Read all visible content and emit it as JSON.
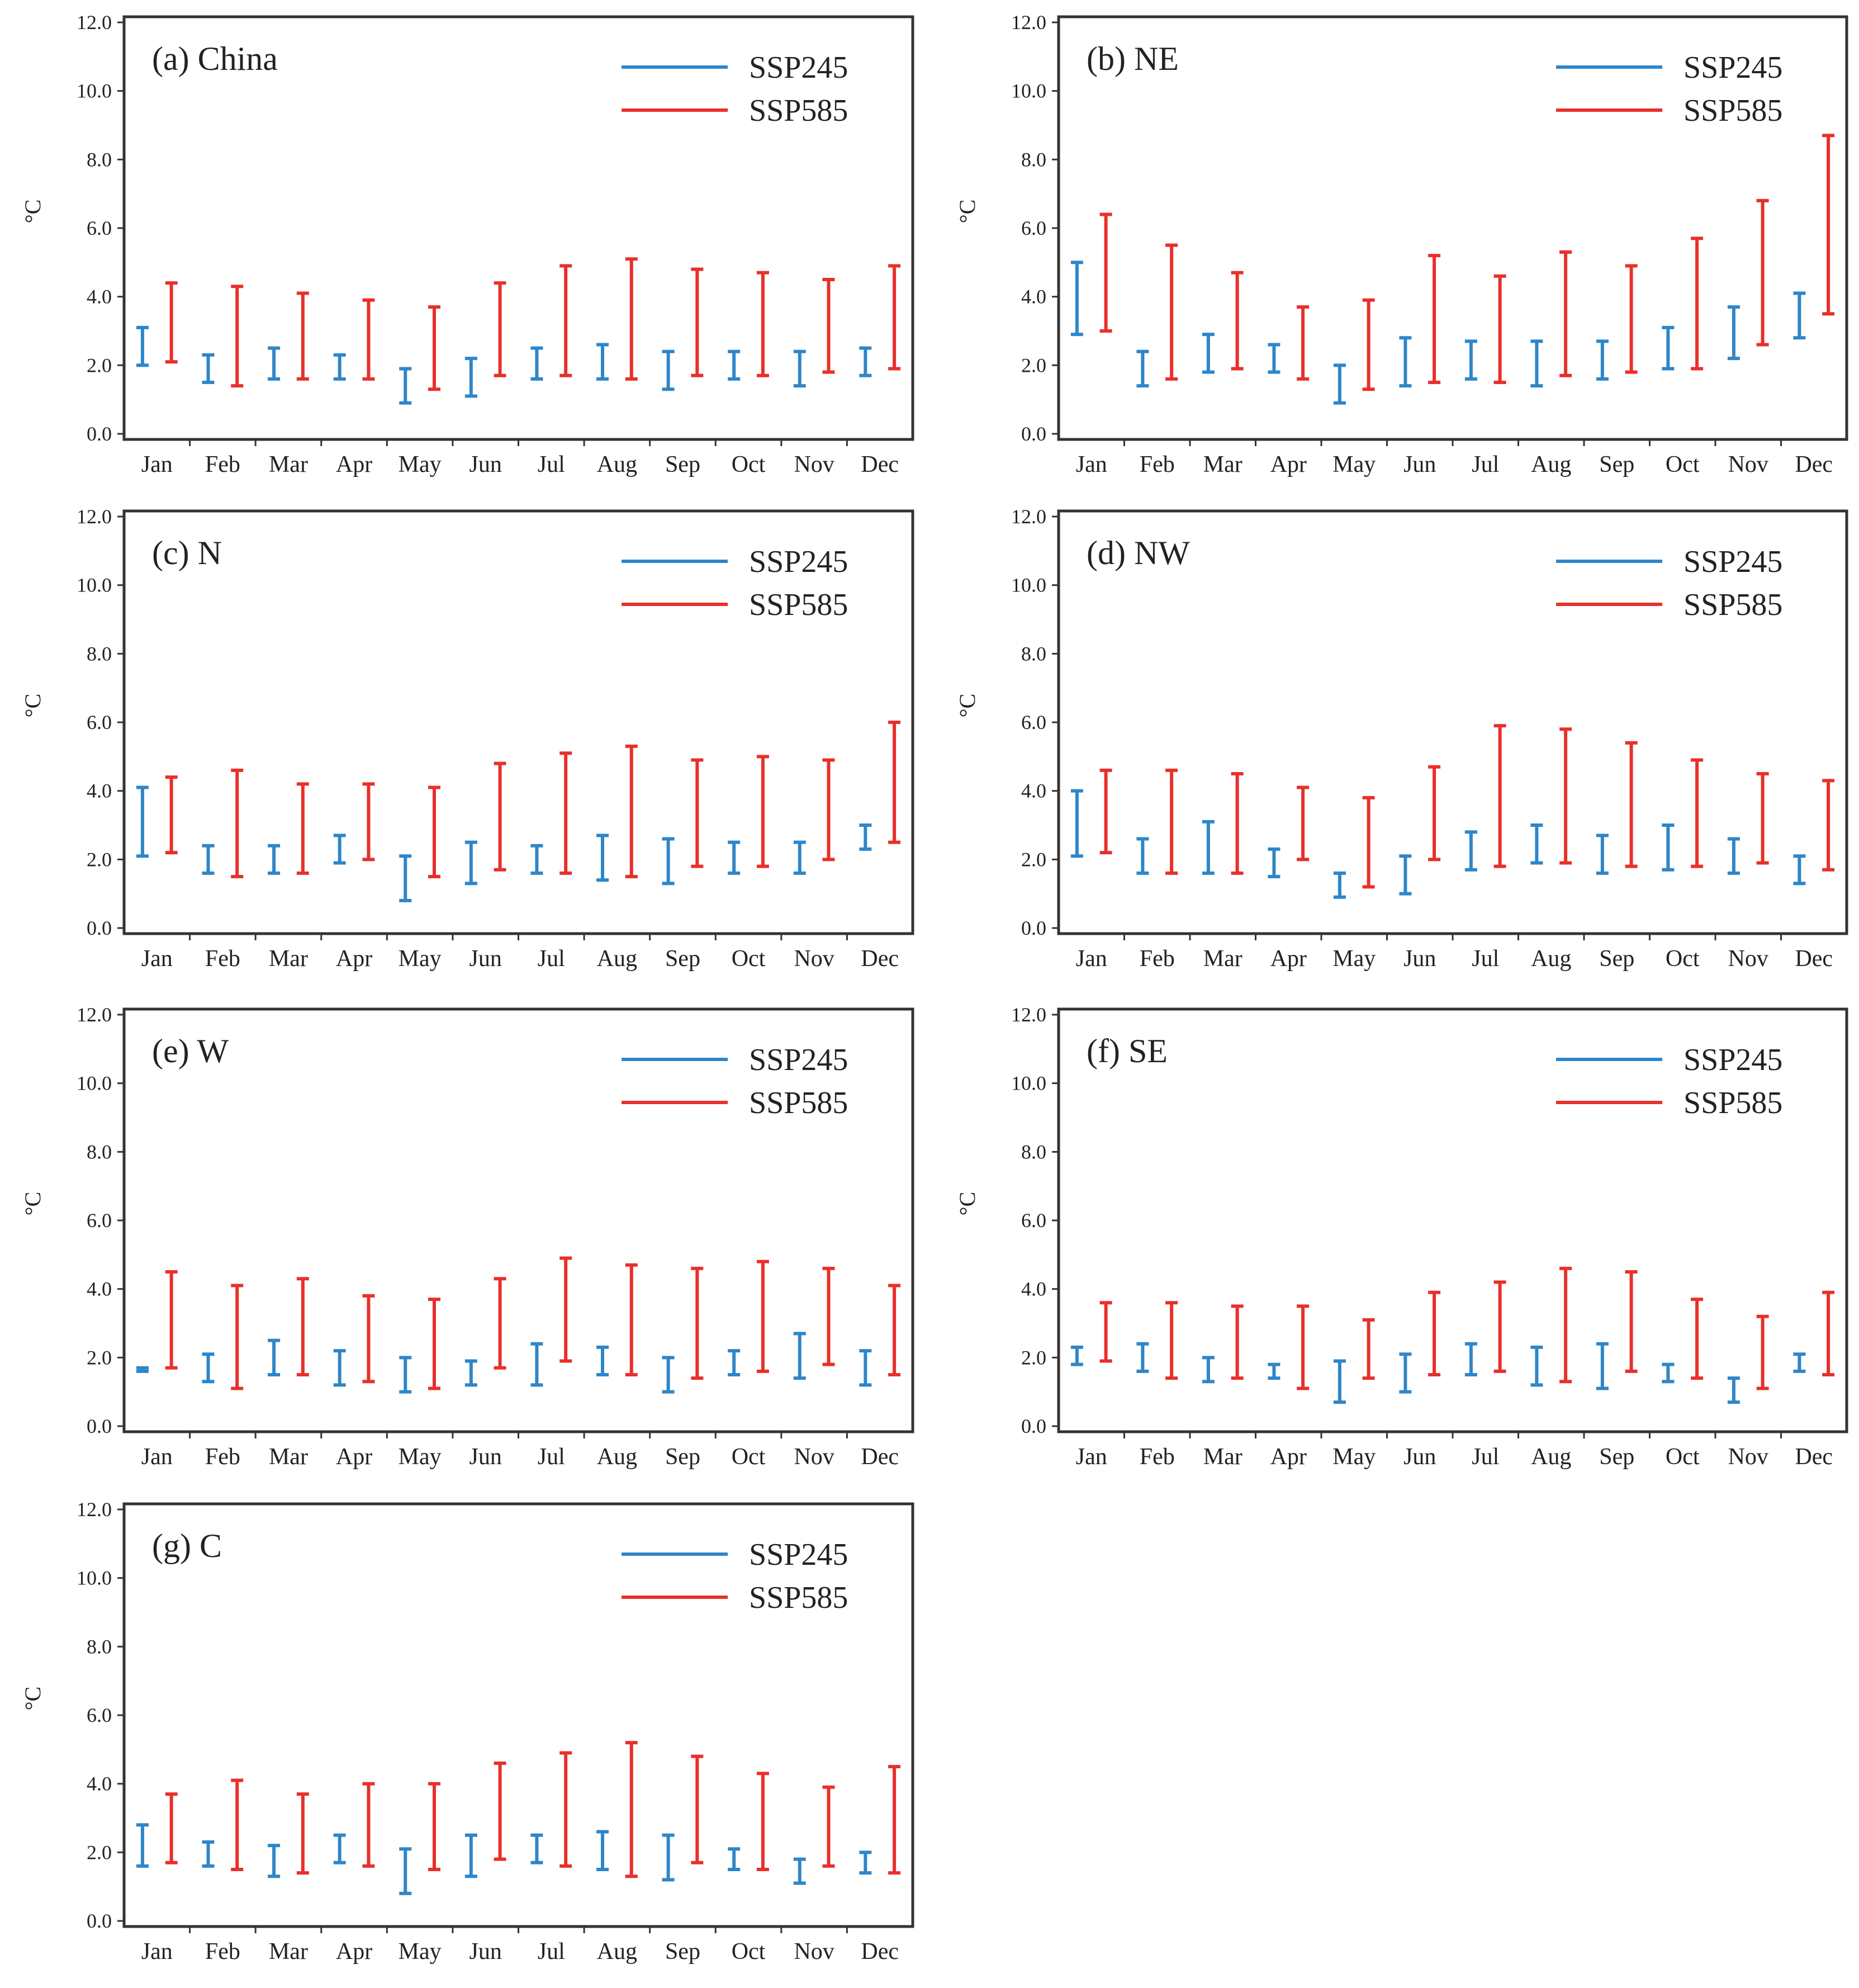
{
  "colors": {
    "ssp245": "#2e86c9",
    "ssp585": "#e8302b",
    "axis": "#333333"
  },
  "chart_data": [
    {
      "type": "range-bar",
      "title": "(a) China",
      "ylabel": "°C",
      "ylim": [
        0,
        12
      ],
      "yticks": [
        "0.0",
        "2.0",
        "4.0",
        "6.0",
        "8.0",
        "10.0",
        "12.0"
      ],
      "categories": [
        "Jan",
        "Feb",
        "Mar",
        "Apr",
        "May",
        "Jun",
        "Jul",
        "Aug",
        "Sep",
        "Oct",
        "Nov",
        "Dec"
      ],
      "legend": "top-right",
      "series": [
        {
          "name": "SSP245",
          "low": [
            2.0,
            1.5,
            1.6,
            1.6,
            0.9,
            1.1,
            1.6,
            1.6,
            1.3,
            1.6,
            1.4,
            1.7
          ],
          "high": [
            3.1,
            2.3,
            2.5,
            2.3,
            1.9,
            2.2,
            2.5,
            2.6,
            2.4,
            2.4,
            2.4,
            2.5
          ]
        },
        {
          "name": "SSP585",
          "low": [
            2.1,
            1.4,
            1.6,
            1.6,
            1.3,
            1.7,
            1.7,
            1.6,
            1.7,
            1.7,
            1.8,
            1.9
          ],
          "high": [
            4.4,
            4.3,
            4.1,
            3.9,
            3.7,
            4.4,
            4.9,
            5.1,
            4.8,
            4.7,
            4.5,
            4.9
          ]
        }
      ]
    },
    {
      "type": "range-bar",
      "title": "(b) NE",
      "ylabel": "°C",
      "ylim": [
        0,
        12
      ],
      "yticks": [
        "0.0",
        "2.0",
        "4.0",
        "6.0",
        "8.0",
        "10.0",
        "12.0"
      ],
      "categories": [
        "Jan",
        "Feb",
        "Mar",
        "Apr",
        "May",
        "Jun",
        "Jul",
        "Aug",
        "Sep",
        "Oct",
        "Nov",
        "Dec"
      ],
      "legend": "top-right",
      "series": [
        {
          "name": "SSP245",
          "low": [
            2.9,
            1.4,
            1.8,
            1.8,
            0.9,
            1.4,
            1.6,
            1.4,
            1.6,
            1.9,
            2.2,
            2.8
          ],
          "high": [
            5.0,
            2.4,
            2.9,
            2.6,
            2.0,
            2.8,
            2.7,
            2.7,
            2.7,
            3.1,
            3.7,
            4.1
          ]
        },
        {
          "name": "SSP585",
          "low": [
            3.0,
            1.6,
            1.9,
            1.6,
            1.3,
            1.5,
            1.5,
            1.7,
            1.8,
            1.9,
            2.6,
            3.5
          ],
          "high": [
            6.4,
            5.5,
            4.7,
            3.7,
            3.9,
            5.2,
            4.6,
            5.3,
            4.9,
            5.7,
            6.8,
            8.7
          ]
        }
      ]
    },
    {
      "type": "range-bar",
      "title": "(c) N",
      "ylabel": "°C",
      "ylim": [
        0,
        12
      ],
      "yticks": [
        "0.0",
        "2.0",
        "4.0",
        "6.0",
        "8.0",
        "10.0",
        "12.0"
      ],
      "categories": [
        "Jan",
        "Feb",
        "Mar",
        "Apr",
        "May",
        "Jun",
        "Jul",
        "Aug",
        "Sep",
        "Oct",
        "Nov",
        "Dec"
      ],
      "legend": "top-right",
      "series": [
        {
          "name": "SSP245",
          "low": [
            2.1,
            1.6,
            1.6,
            1.9,
            0.8,
            1.3,
            1.6,
            1.4,
            1.3,
            1.6,
            1.6,
            2.3
          ],
          "high": [
            4.1,
            2.4,
            2.4,
            2.7,
            2.1,
            2.5,
            2.4,
            2.7,
            2.6,
            2.5,
            2.5,
            3.0
          ]
        },
        {
          "name": "SSP585",
          "low": [
            2.2,
            1.5,
            1.6,
            2.0,
            1.5,
            1.7,
            1.6,
            1.5,
            1.8,
            1.8,
            2.0,
            2.5
          ],
          "high": [
            4.4,
            4.6,
            4.2,
            4.2,
            4.1,
            4.8,
            5.1,
            5.3,
            4.9,
            5.0,
            4.9,
            6.0
          ]
        }
      ]
    },
    {
      "type": "range-bar",
      "title": "(d) NW",
      "ylabel": "°C",
      "ylim": [
        0,
        12
      ],
      "yticks": [
        "0.0",
        "2.0",
        "4.0",
        "6.0",
        "8.0",
        "10.0",
        "12.0"
      ],
      "categories": [
        "Jan",
        "Feb",
        "Mar",
        "Apr",
        "May",
        "Jun",
        "Jul",
        "Aug",
        "Sep",
        "Oct",
        "Nov",
        "Dec"
      ],
      "legend": "top-right",
      "series": [
        {
          "name": "SSP245",
          "low": [
            2.1,
            1.6,
            1.6,
            1.5,
            0.9,
            1.0,
            1.7,
            1.9,
            1.6,
            1.7,
            1.6,
            1.3
          ],
          "high": [
            4.0,
            2.6,
            3.1,
            2.3,
            1.6,
            2.1,
            2.8,
            3.0,
            2.7,
            3.0,
            2.6,
            2.1
          ]
        },
        {
          "name": "SSP585",
          "low": [
            2.2,
            1.6,
            1.6,
            2.0,
            1.2,
            2.0,
            1.8,
            1.9,
            1.8,
            1.8,
            1.9,
            1.7
          ],
          "high": [
            4.6,
            4.6,
            4.5,
            4.1,
            3.8,
            4.7,
            5.9,
            5.8,
            5.4,
            4.9,
            4.5,
            4.3
          ]
        }
      ]
    },
    {
      "type": "range-bar",
      "title": "(e) W",
      "ylabel": "°C",
      "ylim": [
        0,
        12
      ],
      "yticks": [
        "0.0",
        "2.0",
        "4.0",
        "6.0",
        "8.0",
        "10.0",
        "12.0"
      ],
      "categories": [
        "Jan",
        "Feb",
        "Mar",
        "Apr",
        "May",
        "Jun",
        "Jul",
        "Aug",
        "Sep",
        "Oct",
        "Nov",
        "Dec"
      ],
      "legend": "top-right",
      "series": [
        {
          "name": "SSP245",
          "low": [
            1.6,
            1.3,
            1.5,
            1.2,
            1.0,
            1.2,
            1.2,
            1.5,
            1.0,
            1.5,
            1.4,
            1.2
          ],
          "high": [
            1.7,
            2.1,
            2.5,
            2.2,
            2.0,
            1.9,
            2.4,
            2.3,
            2.0,
            2.2,
            2.7,
            2.2
          ]
        },
        {
          "name": "SSP585",
          "low": [
            1.7,
            1.1,
            1.5,
            1.3,
            1.1,
            1.7,
            1.9,
            1.5,
            1.4,
            1.6,
            1.8,
            1.5
          ],
          "high": [
            4.5,
            4.1,
            4.3,
            3.8,
            3.7,
            4.3,
            4.9,
            4.7,
            4.6,
            4.8,
            4.6,
            4.1
          ]
        }
      ]
    },
    {
      "type": "range-bar",
      "title": "(f) SE",
      "ylabel": "°C",
      "ylim": [
        0,
        12
      ],
      "yticks": [
        "0.0",
        "2.0",
        "4.0",
        "6.0",
        "8.0",
        "10.0",
        "12.0"
      ],
      "categories": [
        "Jan",
        "Feb",
        "Mar",
        "Apr",
        "May",
        "Jun",
        "Jul",
        "Aug",
        "Sep",
        "Oct",
        "Nov",
        "Dec"
      ],
      "legend": "top-right",
      "series": [
        {
          "name": "SSP245",
          "low": [
            1.8,
            1.6,
            1.3,
            1.4,
            0.7,
            1.0,
            1.5,
            1.2,
            1.1,
            1.3,
            0.7,
            1.6
          ],
          "high": [
            2.3,
            2.4,
            2.0,
            1.8,
            1.9,
            2.1,
            2.4,
            2.3,
            2.4,
            1.8,
            1.4,
            2.1
          ]
        },
        {
          "name": "SSP585",
          "low": [
            1.9,
            1.4,
            1.4,
            1.1,
            1.4,
            1.5,
            1.6,
            1.3,
            1.6,
            1.4,
            1.1,
            1.5
          ],
          "high": [
            3.6,
            3.6,
            3.5,
            3.5,
            3.1,
            3.9,
            4.2,
            4.6,
            4.5,
            3.7,
            3.2,
            3.9
          ]
        }
      ]
    },
    {
      "type": "range-bar",
      "title": "(g) C",
      "ylabel": "°C",
      "ylim": [
        0,
        12
      ],
      "yticks": [
        "0.0",
        "2.0",
        "4.0",
        "6.0",
        "8.0",
        "10.0",
        "12.0"
      ],
      "categories": [
        "Jan",
        "Feb",
        "Mar",
        "Apr",
        "May",
        "Jun",
        "Jul",
        "Aug",
        "Sep",
        "Oct",
        "Nov",
        "Dec"
      ],
      "legend": "top-right",
      "series": [
        {
          "name": "SSP245",
          "low": [
            1.6,
            1.6,
            1.3,
            1.7,
            0.8,
            1.3,
            1.7,
            1.5,
            1.2,
            1.5,
            1.1,
            1.4
          ],
          "high": [
            2.8,
            2.3,
            2.2,
            2.5,
            2.1,
            2.5,
            2.5,
            2.6,
            2.5,
            2.1,
            1.8,
            2.0
          ]
        },
        {
          "name": "SSP585",
          "low": [
            1.7,
            1.5,
            1.4,
            1.6,
            1.5,
            1.8,
            1.6,
            1.3,
            1.7,
            1.5,
            1.6,
            1.4
          ],
          "high": [
            3.7,
            4.1,
            3.7,
            4.0,
            4.0,
            4.6,
            4.9,
            5.2,
            4.8,
            4.3,
            3.9,
            4.5
          ]
        }
      ]
    }
  ]
}
